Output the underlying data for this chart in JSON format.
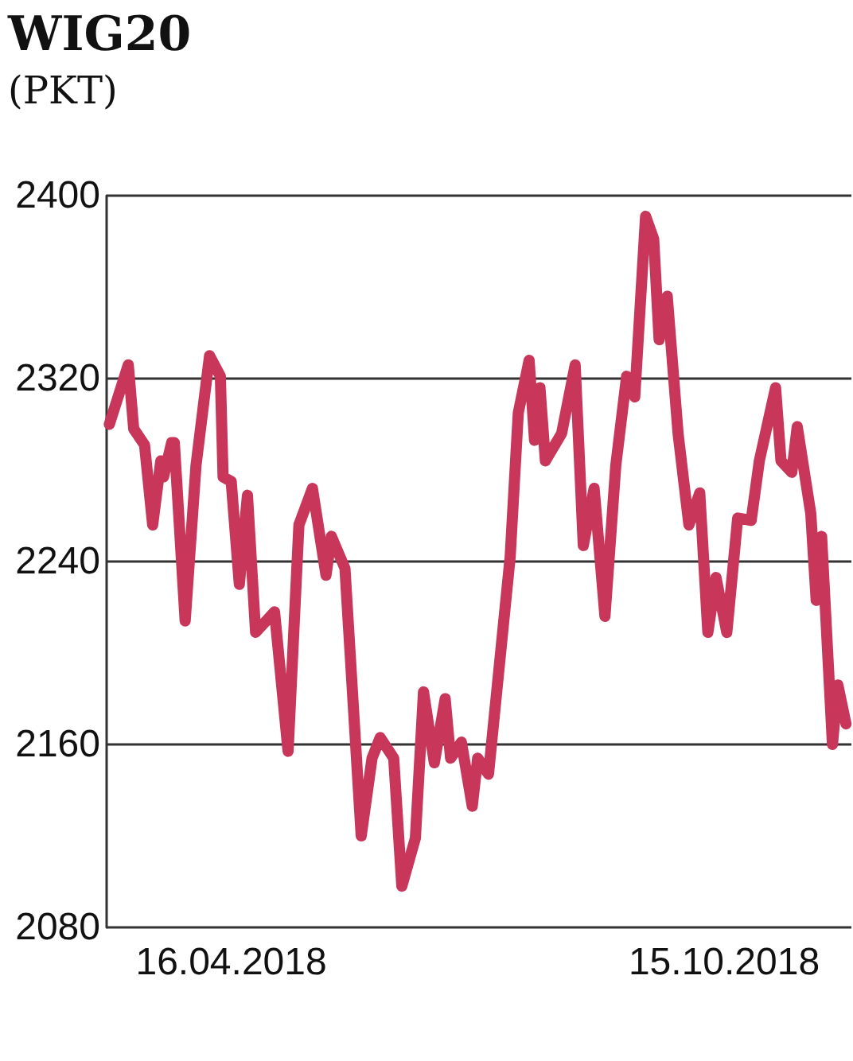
{
  "chart_data": {
    "type": "line",
    "title": "WIG20",
    "subtitle": "(PKT)",
    "x": [
      "2018-03-02",
      "2018-03-09",
      "2018-03-11",
      "2018-03-15",
      "2018-03-18",
      "2018-03-21",
      "2018-03-22",
      "2018-03-25",
      "2018-03-26",
      "2018-03-30",
      "2018-04-03",
      "2018-04-08",
      "2018-04-12",
      "2018-04-13",
      "2018-04-16",
      "2018-04-19",
      "2018-04-22",
      "2018-04-25",
      "2018-05-02",
      "2018-05-07",
      "2018-05-11",
      "2018-05-16",
      "2018-05-21",
      "2018-05-23",
      "2018-05-28",
      "2018-06-03",
      "2018-06-07",
      "2018-06-10",
      "2018-06-15",
      "2018-06-18",
      "2018-06-23",
      "2018-06-26",
      "2018-06-30",
      "2018-07-04",
      "2018-07-06",
      "2018-07-10",
      "2018-07-14",
      "2018-07-16",
      "2018-07-20",
      "2018-07-28",
      "2018-07-31",
      "2018-08-04",
      "2018-08-06",
      "2018-08-08",
      "2018-08-10",
      "2018-08-16",
      "2018-08-21",
      "2018-08-24",
      "2018-08-28",
      "2018-09-01",
      "2018-09-05",
      "2018-09-09",
      "2018-09-12",
      "2018-09-16",
      "2018-09-19",
      "2018-09-21",
      "2018-09-24",
      "2018-09-28",
      "2018-10-02",
      "2018-10-06",
      "2018-10-09",
      "2018-10-12",
      "2018-10-16",
      "2018-10-20",
      "2018-10-25",
      "2018-10-28",
      "2018-11-03",
      "2018-11-05",
      "2018-11-09",
      "2018-11-11",
      "2018-11-16",
      "2018-11-18",
      "2018-11-20",
      "2018-11-24",
      "2018-11-26",
      "2018-11-29"
    ],
    "series": [
      {
        "color": "#c8375a",
        "values": [
          2300,
          2326,
          2298,
          2291,
          2256,
          2284,
          2277,
          2292,
          2292,
          2214,
          2282,
          2330,
          2321,
          2277,
          2275,
          2230,
          2269,
          2209,
          2218,
          2157,
          2256,
          2272,
          2234,
          2251,
          2237,
          2120,
          2154,
          2163,
          2154,
          2098,
          2119,
          2183,
          2152,
          2180,
          2154,
          2161,
          2133,
          2154,
          2147,
          2242,
          2305,
          2328,
          2293,
          2316,
          2284,
          2296,
          2326,
          2247,
          2272,
          2216,
          2282,
          2321,
          2312,
          2391,
          2381,
          2337,
          2356,
          2296,
          2256,
          2270,
          2209,
          2233,
          2209,
          2259,
          2258,
          2284,
          2316,
          2284,
          2279,
          2299,
          2261,
          2223,
          2251,
          2160,
          2186,
          2169
        ]
      }
    ],
    "xlim": [
      "2018-03-01",
      "2018-12-01"
    ],
    "xticks": [
      {
        "value": "2018-04-16",
        "label": "16.04.2018"
      },
      {
        "value": "2018-10-15",
        "label": "15.10.2018"
      }
    ],
    "ylim": [
      2080,
      2400
    ],
    "yticks": [
      2080,
      2160,
      2240,
      2320,
      2400
    ],
    "grid": "y",
    "line_style": "solid"
  }
}
